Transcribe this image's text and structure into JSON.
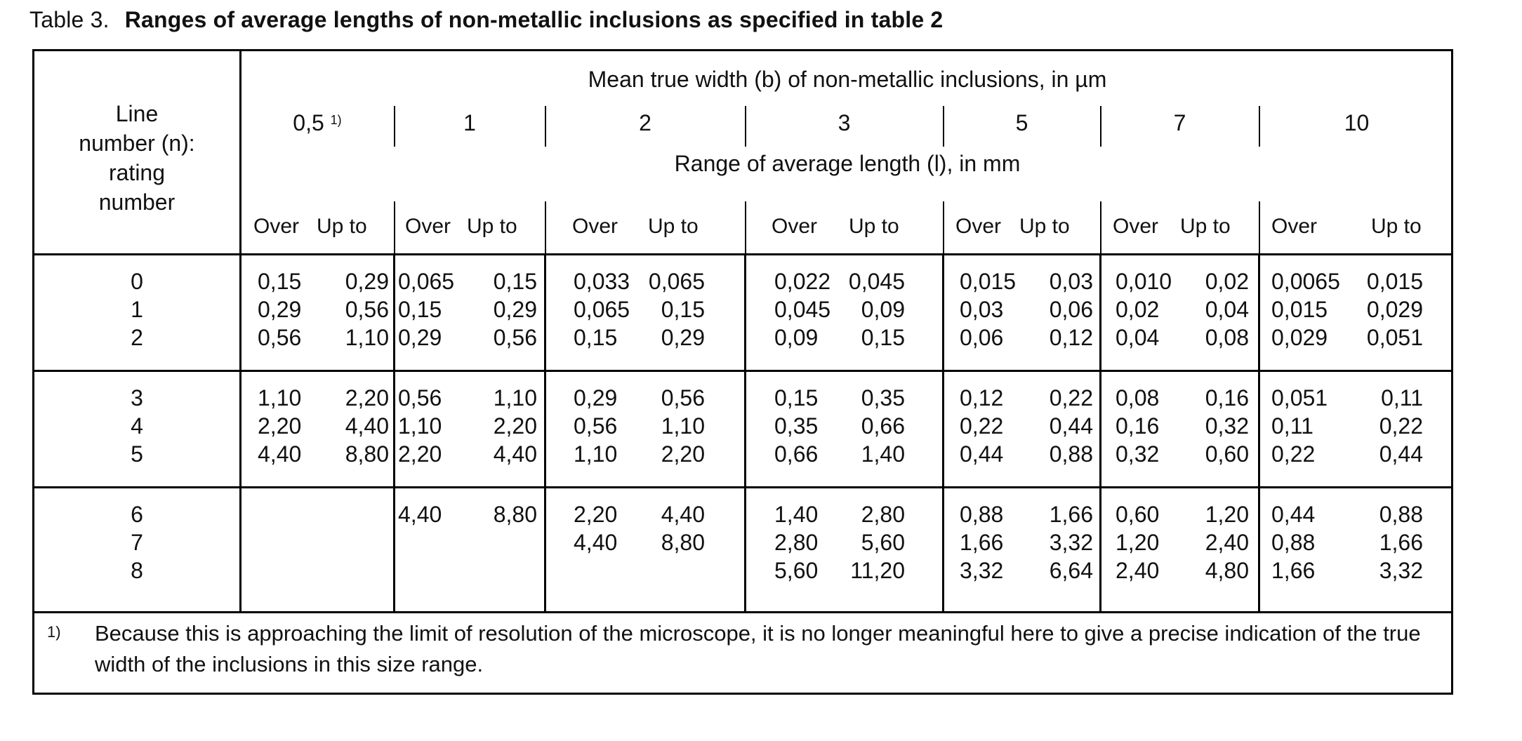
{
  "caption": {
    "number": "Table 3.",
    "title": "Ranges of average lengths of non-metallic inclusions as specified in table 2"
  },
  "header": {
    "row_label_lines": [
      "Line",
      "number (n):",
      "rating",
      "number"
    ],
    "width_heading": "Mean true width (b) of non-metallic inclusions, in µm",
    "length_heading": "Range of average length (l), in mm",
    "widths": [
      "0,5",
      "1",
      "2",
      "3",
      "5",
      "7",
      "10"
    ],
    "width_first_footnote": "1)",
    "over_label": "Over",
    "upto_label": "Up to"
  },
  "groups": [
    {
      "ratings": [
        "0",
        "1",
        "2"
      ],
      "cols": [
        {
          "over": [
            "0,15",
            "0,29",
            "0,56"
          ],
          "upto": [
            "0,29",
            "0,56",
            "1,10"
          ]
        },
        {
          "over": [
            "0,065",
            "0,15",
            "0,29"
          ],
          "upto": [
            "0,15",
            "0,29",
            "0,56"
          ]
        },
        {
          "over": [
            "0,033",
            "0,065",
            "0,15"
          ],
          "upto": [
            "0,065",
            "0,15",
            "0,29"
          ]
        },
        {
          "over": [
            "0,022",
            "0,045",
            "0,09"
          ],
          "upto": [
            "0,045",
            "0,09",
            "0,15"
          ]
        },
        {
          "over": [
            "0,015",
            "0,03",
            "0,06"
          ],
          "upto": [
            "0,03",
            "0,06",
            "0,12"
          ]
        },
        {
          "over": [
            "0,010",
            "0,02",
            "0,04"
          ],
          "upto": [
            "0,02",
            "0,04",
            "0,08"
          ]
        },
        {
          "over": [
            "0,0065",
            "0,015",
            "0,029"
          ],
          "upto": [
            "0,015",
            "0,029",
            "0,051"
          ]
        }
      ]
    },
    {
      "ratings": [
        "3",
        "4",
        "5"
      ],
      "cols": [
        {
          "over": [
            "1,10",
            "2,20",
            "4,40"
          ],
          "upto": [
            "2,20",
            "4,40",
            "8,80"
          ]
        },
        {
          "over": [
            "0,56",
            "1,10",
            "2,20"
          ],
          "upto": [
            "1,10",
            "2,20",
            "4,40"
          ]
        },
        {
          "over": [
            "0,29",
            "0,56",
            "1,10"
          ],
          "upto": [
            "0,56",
            "1,10",
            "2,20"
          ]
        },
        {
          "over": [
            "0,15",
            "0,35",
            "0,66"
          ],
          "upto": [
            "0,35",
            "0,66",
            "1,40"
          ]
        },
        {
          "over": [
            "0,12",
            "0,22",
            "0,44"
          ],
          "upto": [
            "0,22",
            "0,44",
            "0,88"
          ]
        },
        {
          "over": [
            "0,08",
            "0,16",
            "0,32"
          ],
          "upto": [
            "0,16",
            "0,32",
            "0,60"
          ]
        },
        {
          "over": [
            "0,051",
            "0,11",
            "0,22"
          ],
          "upto": [
            "0,11",
            "0,22",
            "0,44"
          ]
        }
      ]
    },
    {
      "ratings": [
        "6",
        "7",
        "8"
      ],
      "cols": [
        {
          "over": [],
          "upto": []
        },
        {
          "over": [
            "4,40"
          ],
          "upto": [
            "8,80"
          ]
        },
        {
          "over": [
            "2,20",
            "4,40"
          ],
          "upto": [
            "4,40",
            "8,80"
          ]
        },
        {
          "over": [
            "1,40",
            "2,80",
            "5,60"
          ],
          "upto": [
            "2,80",
            "5,60",
            "11,20"
          ]
        },
        {
          "over": [
            "0,88",
            "1,66",
            "3,32"
          ],
          "upto": [
            "1,66",
            "3,32",
            "6,64"
          ]
        },
        {
          "over": [
            "0,60",
            "1,20",
            "2,40"
          ],
          "upto": [
            "1,20",
            "2,40",
            "4,80"
          ]
        },
        {
          "over": [
            "0,44",
            "0,88",
            "1,66"
          ],
          "upto": [
            "0,88",
            "1,66",
            "3,32"
          ]
        }
      ]
    }
  ],
  "footnote": {
    "mark": "1)",
    "text": "Because this is approaching the limit of resolution of the microscope, it is no longer meaningful here to give a precise indication of the true width of the inclusions in this size range."
  }
}
